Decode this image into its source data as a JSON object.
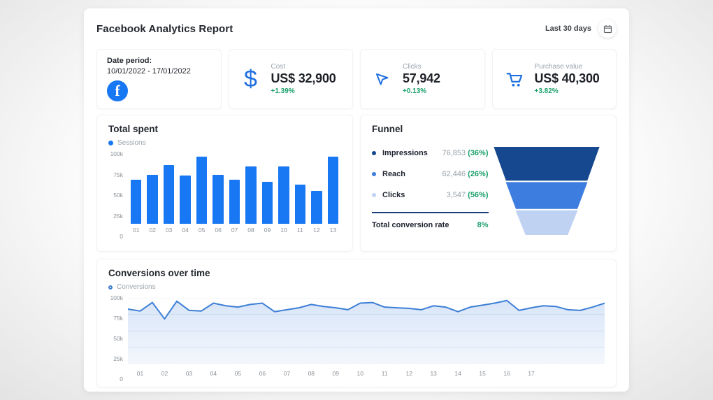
{
  "header": {
    "title": "Facebook Analytics Report",
    "date_range_label": "Last 30 days"
  },
  "date_card": {
    "label": "Date period:",
    "value": "10/01/2022 - 17/01/2022",
    "icon": "facebook-logo",
    "logo_letter": "f"
  },
  "kpi_cards": [
    {
      "label": "Cost",
      "value": "US$ 32,900",
      "delta": "+1.39%",
      "icon": "dollar-icon"
    },
    {
      "label": "Clicks",
      "value": "57,942",
      "delta": "+0.13%",
      "icon": "cursor-icon"
    },
    {
      "label": "Purchase value",
      "value": "US$ 40,300",
      "delta": "+3.82%",
      "icon": "cart-icon"
    }
  ],
  "funnel": {
    "title": "Funnel",
    "items": [
      {
        "label": "Impressions",
        "value": "76,853",
        "percent": "(36%)",
        "dot_color": "#16488F"
      },
      {
        "label": "Reach",
        "value": "62,446",
        "percent": "(26%)",
        "dot_color": "#3D7DE0"
      },
      {
        "label": "Clicks",
        "value": "3,547",
        "percent": "(56%)",
        "dot_color": "#BFD2F2"
      }
    ],
    "total_label": "Total conversion rate",
    "total_value": "8%"
  },
  "colors": {
    "primary_blue": "#1877F2",
    "line_blue": "#3D7FD6",
    "funnel_navy": "#16488F",
    "funnel_mid": "#3D7DE0",
    "funnel_light": "#BFD2F2",
    "green": "#1CA16D"
  },
  "chart_data": [
    {
      "type": "bar",
      "title": "Total spent",
      "legend": "Sessions",
      "categories": [
        "01",
        "02",
        "03",
        "04",
        "05",
        "06",
        "07",
        "08",
        "09",
        "10",
        "11",
        "12",
        "13"
      ],
      "values": [
        63000,
        70000,
        84000,
        69000,
        96000,
        70000,
        63000,
        82000,
        60000,
        82000,
        56000,
        47000,
        96000
      ],
      "ylim": [
        0,
        100000
      ],
      "y_ticks": [
        "100k",
        "75k",
        "50k",
        "25k",
        "0"
      ],
      "bar_color": "#1877F2",
      "grid": false,
      "legend_position": "top-left"
    },
    {
      "type": "funnel",
      "title": "Funnel",
      "stages": [
        {
          "label": "Impressions",
          "value": 76853,
          "percent": 36
        },
        {
          "label": "Reach",
          "value": 62446,
          "percent": 26
        },
        {
          "label": "Clicks",
          "value": 3547,
          "percent": 56
        }
      ],
      "total_conversion_rate_percent": 8
    },
    {
      "type": "line",
      "title": "Conversions over time",
      "legend": "Conversions",
      "x_labels": [
        "01",
        "02",
        "03",
        "04",
        "05",
        "06",
        "07",
        "08",
        "09",
        "10",
        "11",
        "12",
        "13",
        "14",
        "15",
        "16",
        "17"
      ],
      "values": [
        83000,
        80000,
        93000,
        68000,
        95000,
        81000,
        80000,
        92000,
        88000,
        86000,
        90000,
        92000,
        79000,
        82000,
        85000,
        90000,
        87000,
        85000,
        82000,
        92000,
        93000,
        86000,
        85000,
        84000,
        82000,
        88000,
        86000,
        79000,
        86000,
        89000,
        92000,
        96000,
        81000,
        85000,
        88000,
        87000,
        82000,
        81000,
        86000,
        92000
      ],
      "ylim": [
        0,
        100000
      ],
      "y_ticks": [
        "100k",
        "75k",
        "50k",
        "25k",
        "0"
      ],
      "line_color": "#3D7FD6",
      "area_fill": "rgba(61,125,216,0.16)",
      "grid": true,
      "legend_position": "top-left"
    }
  ]
}
